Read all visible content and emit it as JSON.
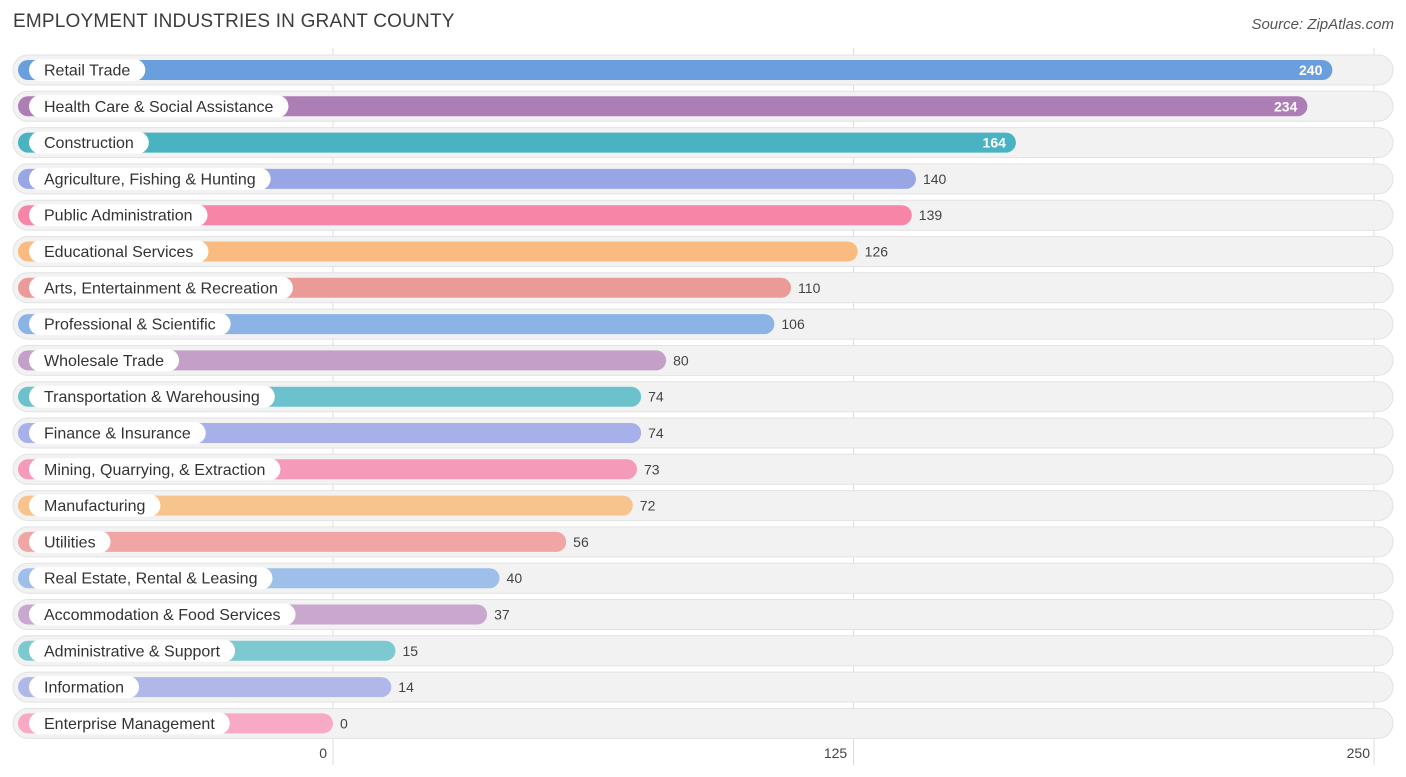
{
  "header": {
    "title": "EMPLOYMENT INDUSTRIES IN GRANT COUNTY",
    "source": "Source: ZipAtlas.com"
  },
  "chart_data": {
    "type": "bar",
    "orientation": "horizontal",
    "title": "EMPLOYMENT INDUSTRIES IN GRANT COUNTY",
    "xlim": [
      0,
      250
    ],
    "x_ticks": [
      0,
      125,
      250
    ],
    "grid": true,
    "categories": [
      "Retail Trade",
      "Health Care & Social Assistance",
      "Construction",
      "Agriculture, Fishing & Hunting",
      "Public Administration",
      "Educational Services",
      "Arts, Entertainment & Recreation",
      "Professional & Scientific",
      "Wholesale Trade",
      "Transportation & Warehousing",
      "Finance & Insurance",
      "Mining, Quarrying, & Extraction",
      "Manufacturing",
      "Utilities",
      "Real Estate, Rental & Leasing",
      "Accommodation & Food Services",
      "Administrative & Support",
      "Information",
      "Enterprise Management"
    ],
    "values": [
      240,
      234,
      164,
      140,
      139,
      126,
      110,
      106,
      80,
      74,
      74,
      73,
      72,
      56,
      40,
      37,
      15,
      14,
      0
    ],
    "colors": [
      "#6a9fdd",
      "#ad7db6",
      "#4ab3c2",
      "#99a6e6",
      "#f685a8",
      "#f9bb80",
      "#ea9a97",
      "#8cb3e6",
      "#c4a0c8",
      "#6cc2cc",
      "#a8b0ea",
      "#f69ab9",
      "#f8c48e",
      "#efa6a4",
      "#9dbfe9",
      "#c9a8d0",
      "#7cc9d0",
      "#b0b8ea",
      "#f8a9c5"
    ]
  }
}
